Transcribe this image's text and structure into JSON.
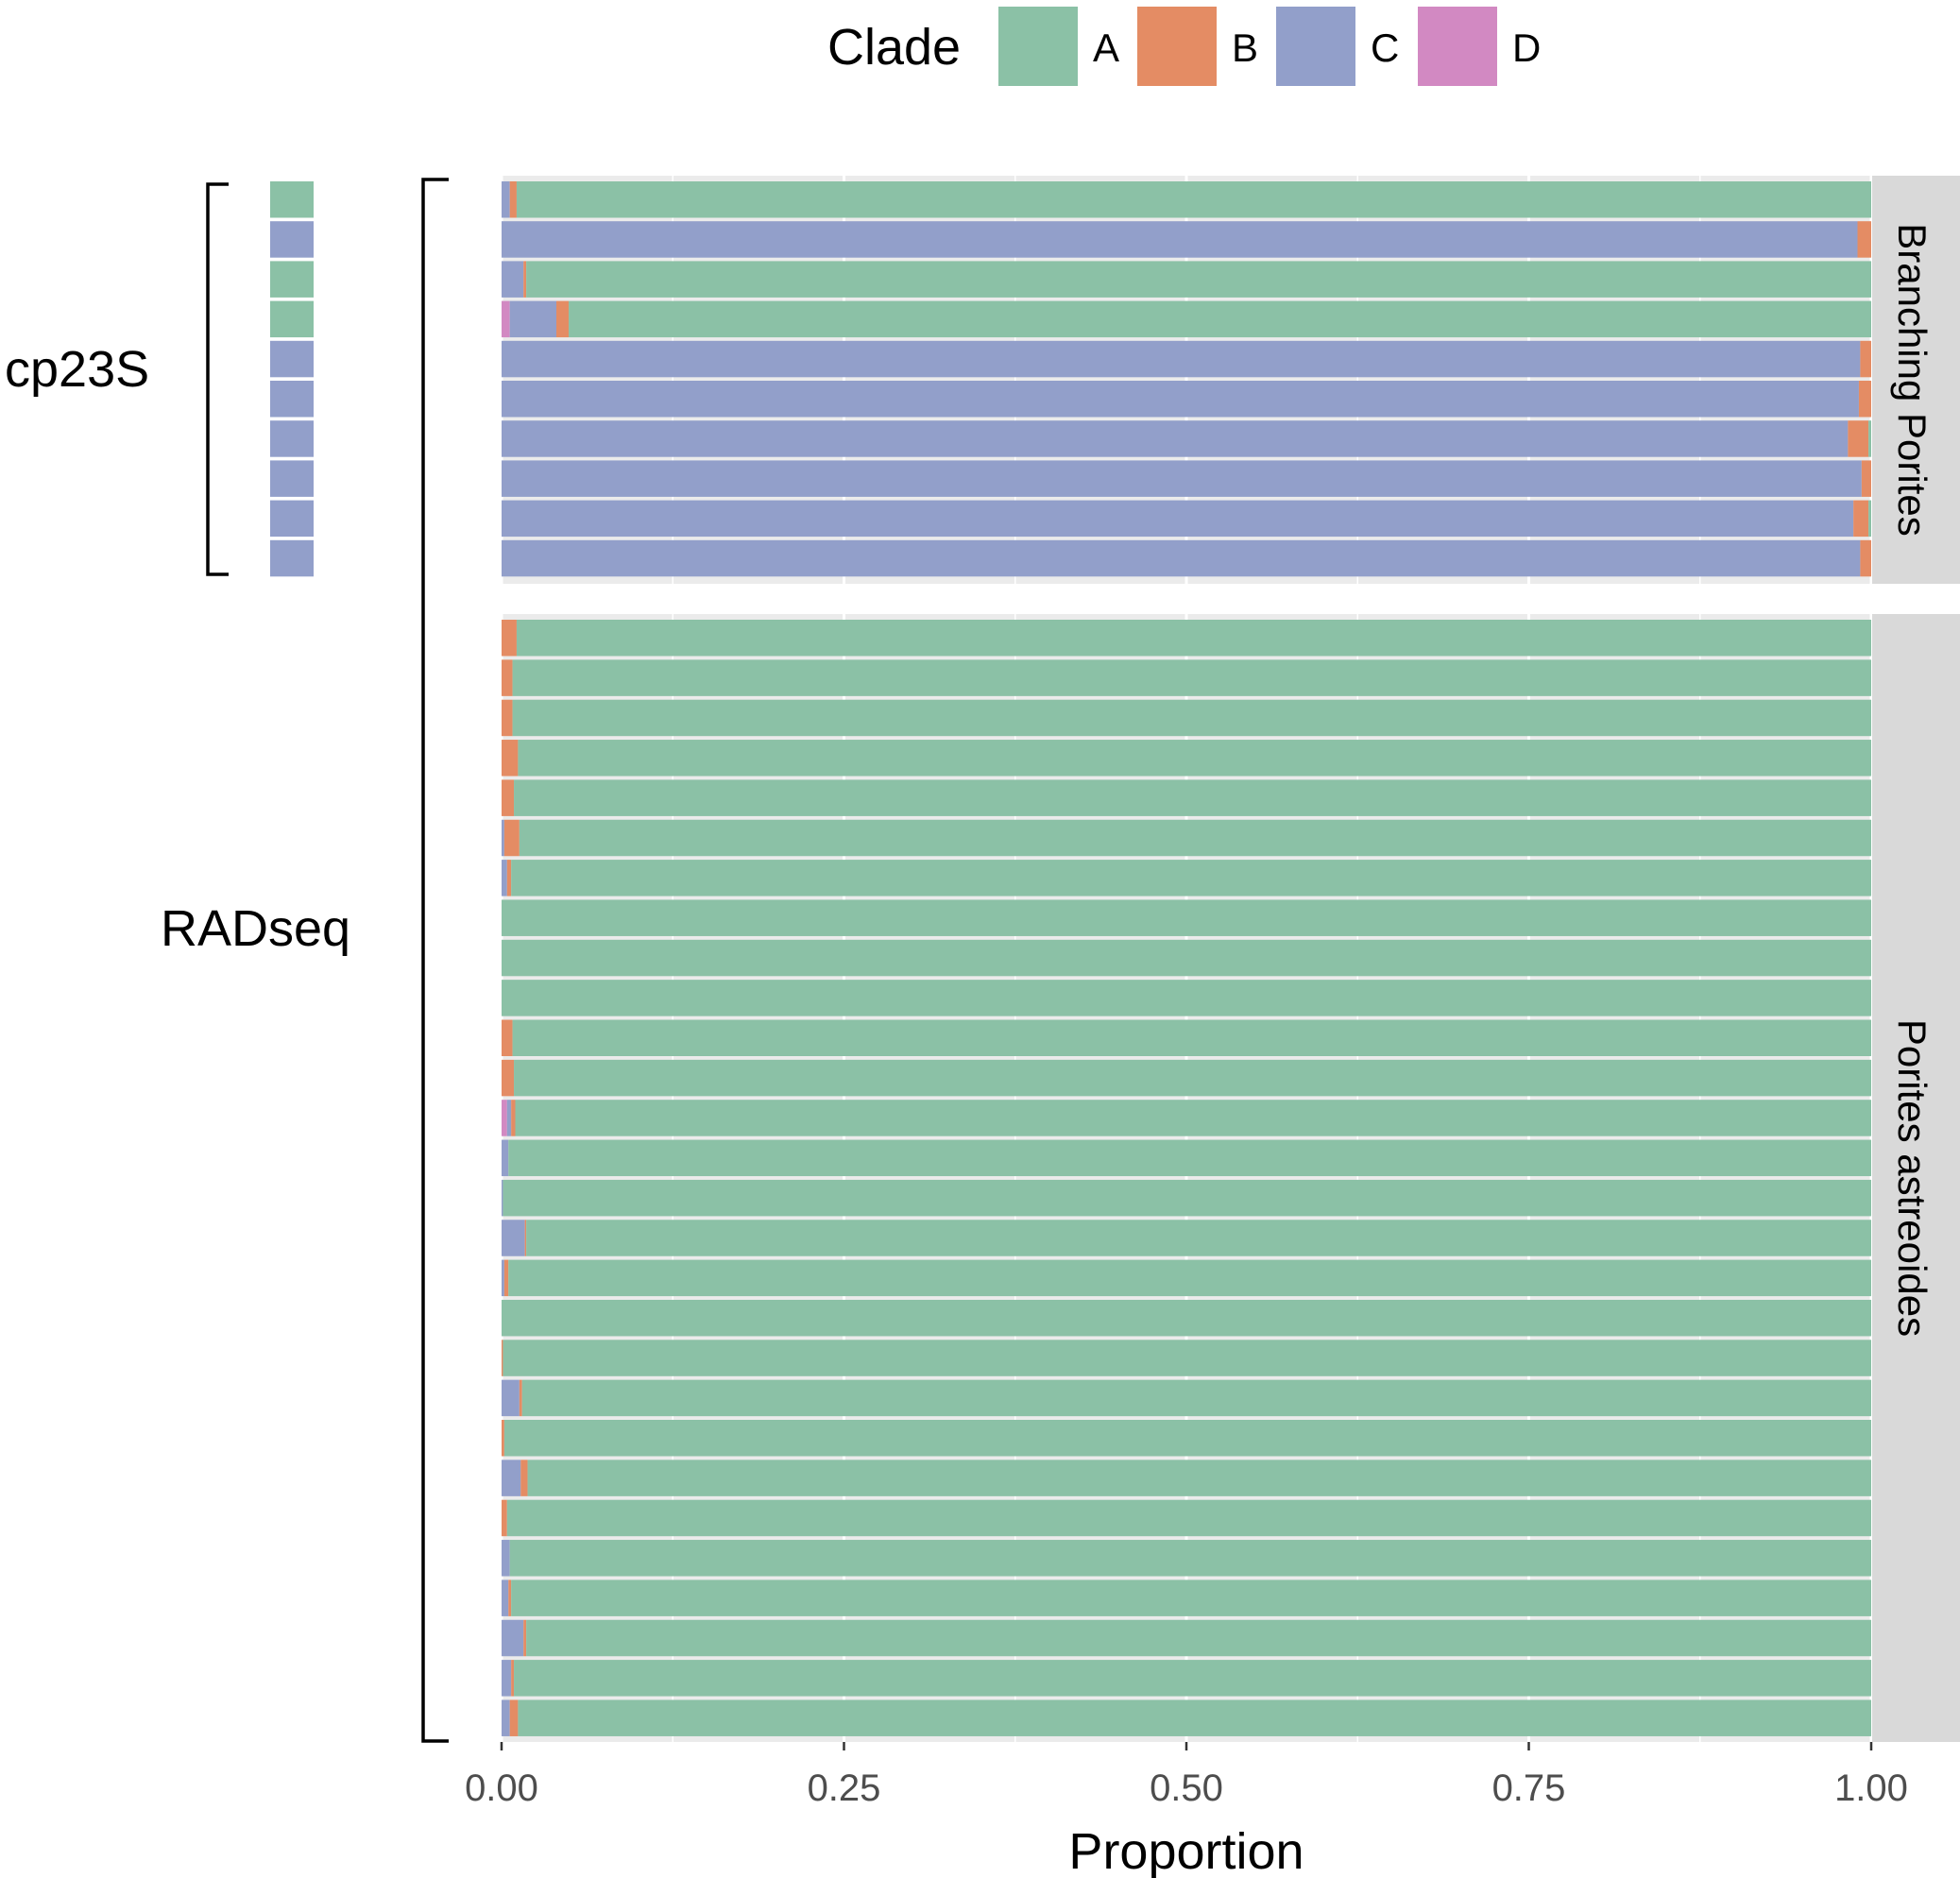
{
  "colors": {
    "A": "#8BC1A6",
    "B": "#E48C64",
    "C": "#929FCA",
    "D": "#D289C2",
    "panel_bg": "#EBEBEB",
    "strip_bg": "#D9D9D9",
    "grid": "#ffffff"
  },
  "legend": {
    "title": "Clade",
    "labels": [
      "A",
      "B",
      "C",
      "D"
    ]
  },
  "chart_data": {
    "type": "bar",
    "orientation": "horizontal-stacked",
    "xlabel": "Proportion",
    "xlim": [
      0,
      1
    ],
    "x_ticks": [
      0,
      0.25,
      0.5,
      0.75,
      1
    ],
    "x_tick_labels": [
      "0.00",
      "0.25",
      "0.50",
      "0.75",
      "1.00"
    ],
    "series_names": [
      "A",
      "B",
      "C",
      "D"
    ],
    "facets": [
      {
        "name": "Branching Porites",
        "samples": [
          {
            "C": 0.006,
            "B": 0.005,
            "A": 0.989
          },
          {
            "C": 0.99,
            "B": 0.01
          },
          {
            "C": 0.016,
            "B": 0.002,
            "A": 0.982
          },
          {
            "D": 0.006,
            "C": 0.034,
            "B": 0.009,
            "A": 0.951
          },
          {
            "C": 0.992,
            "B": 0.008
          },
          {
            "C": 0.991,
            "B": 0.009
          },
          {
            "C": 0.983,
            "B": 0.015,
            "A": 0.002
          },
          {
            "C": 0.993,
            "B": 0.007
          },
          {
            "C": 0.987,
            "B": 0.011,
            "A": 0.002
          },
          {
            "C": 0.992,
            "B": 0.008
          }
        ]
      },
      {
        "name": "Porites astreoides",
        "samples": [
          {
            "B": 0.011,
            "A": 0.989
          },
          {
            "B": 0.008,
            "A": 0.992
          },
          {
            "B": 0.008,
            "A": 0.992
          },
          {
            "B": 0.012,
            "A": 0.988
          },
          {
            "B": 0.009,
            "A": 0.991
          },
          {
            "C": 0.002,
            "B": 0.011,
            "A": 0.987
          },
          {
            "C": 0.004,
            "B": 0.003,
            "A": 0.993
          },
          {
            "A": 1.0
          },
          {
            "A": 1.0
          },
          {
            "A": 1.0
          },
          {
            "B": 0.008,
            "A": 0.992
          },
          {
            "B": 0.009,
            "A": 0.991
          },
          {
            "D": 0.004,
            "C": 0.003,
            "B": 0.003,
            "A": 0.99
          },
          {
            "C": 0.005,
            "A": 0.995
          },
          {
            "C": 0.001,
            "A": 0.999
          },
          {
            "C": 0.017,
            "B": 0.001,
            "A": 0.982
          },
          {
            "C": 0.002,
            "B": 0.003,
            "A": 0.995
          },
          {
            "A": 1.0
          },
          {
            "B": 0.001,
            "A": 0.999
          },
          {
            "C": 0.013,
            "B": 0.002,
            "A": 0.985
          },
          {
            "B": 0.002,
            "A": 0.998
          },
          {
            "C": 0.014,
            "B": 0.005,
            "A": 0.981
          },
          {
            "B": 0.004,
            "A": 0.996
          },
          {
            "C": 0.006,
            "A": 0.994
          },
          {
            "C": 0.005,
            "B": 0.002,
            "A": 0.993
          },
          {
            "C": 0.016,
            "B": 0.002,
            "A": 0.982
          },
          {
            "C": 0.007,
            "B": 0.002,
            "A": 0.991
          },
          {
            "C": 0.006,
            "B": 0.006,
            "A": 0.988
          }
        ]
      }
    ],
    "cp23S_colors": [
      "A",
      "C",
      "A",
      "A",
      "C",
      "C",
      "C",
      "C",
      "C",
      "C"
    ]
  },
  "annotations": {
    "cp23s_label": "cp23S",
    "radseq_label": "RADseq"
  }
}
